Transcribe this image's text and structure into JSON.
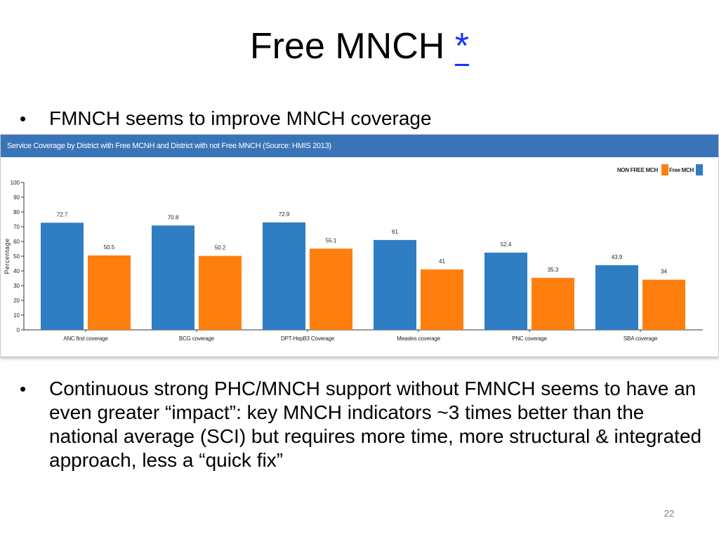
{
  "slide": {
    "title": "Free MNCH",
    "title_link": "*",
    "bullet_1": "FMNCH seems to improve MNCH coverage",
    "bullet_2": "Continuous strong PHC/MNCH support without FMNCH seems to have an even greater “impact”: key MNCH indicators ~3 times better than the national average (SCI) but requires more time, more structural & integrated approach, less a “quick fix”",
    "bullet_marker": "•",
    "page_number": "22"
  },
  "chart_data": {
    "type": "bar",
    "title": "Service Coverage by District with Free MCNH and District with not Free MNCH (Source: HMIS 2013)",
    "ylabel": "Percentage",
    "xlabel": "",
    "ylim": [
      0,
      100
    ],
    "yticks": [
      0,
      10,
      20,
      30,
      40,
      50,
      60,
      70,
      80,
      90,
      100
    ],
    "grid": false,
    "legend_position": "top-right",
    "categories": [
      "ANC first coverage",
      "BCG coverage",
      "DPT-HepB3 Coverage",
      "Measles coverage",
      "PNC coverage",
      "SBA coverage"
    ],
    "series": [
      {
        "name": "NON FREE MCH",
        "color": "#ff7f0e",
        "values": [
          50.5,
          50.2,
          55.1,
          41,
          35.3,
          34
        ]
      },
      {
        "name": "Free MCH",
        "color": "#2f7dc3",
        "values": [
          72.7,
          70.8,
          72.9,
          61,
          52.4,
          43.9
        ]
      }
    ]
  }
}
